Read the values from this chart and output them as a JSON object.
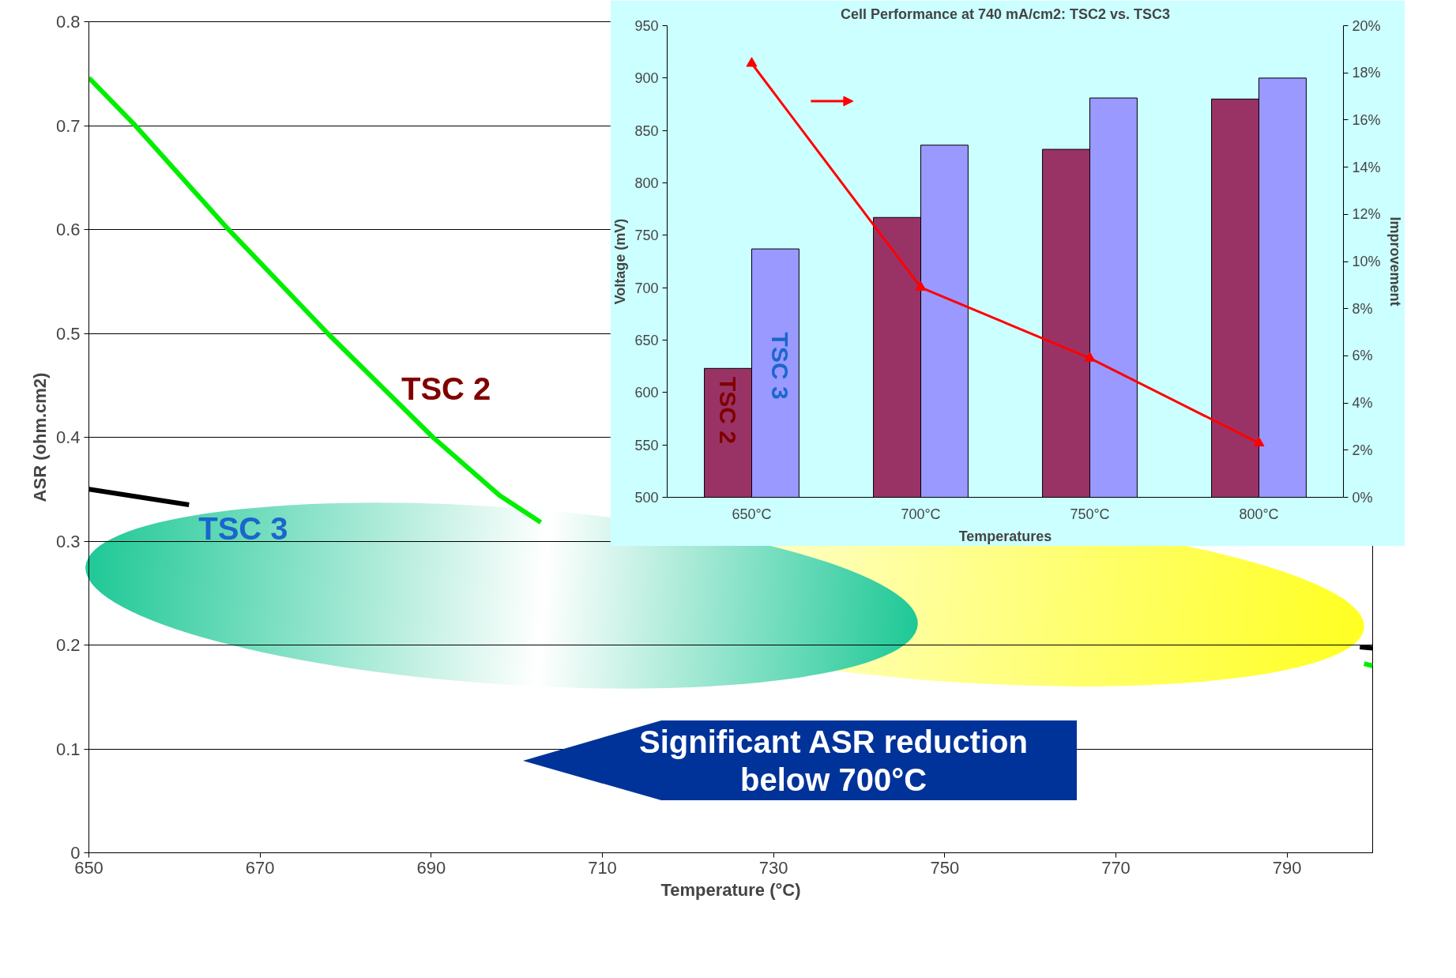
{
  "chart_data": [
    {
      "type": "line",
      "xlabel": "Temperature (°C)",
      "ylabel": "ASR (ohm.cm2)",
      "xlim": [
        650,
        800
      ],
      "ylim": [
        0,
        0.8
      ],
      "xticks": [
        650,
        670,
        690,
        710,
        730,
        750,
        770,
        790
      ],
      "yticks": [
        0,
        0.1,
        0.2,
        0.3,
        0.4,
        0.5,
        0.6,
        0.7,
        0.8
      ],
      "grid": "y",
      "marker": "none",
      "series": [
        {
          "name": "TSC 2",
          "color": "#00ee00",
          "x": [
            650,
            655.2,
            666.2,
            677.9,
            690.2,
            698,
            702.8,
            null,
            799,
            800
          ],
          "values": [
            0.746,
            0.702,
            0.601,
            0.5,
            0.4,
            0.344,
            0.318,
            null,
            0.182,
            0.18
          ]
        },
        {
          "name": "TSC 3",
          "color": "#000000",
          "x": [
            650,
            661.7,
            null,
            798.5,
            800
          ],
          "values": [
            0.35,
            0.335,
            null,
            0.198,
            0.197
          ]
        }
      ],
      "annotations": [
        "Significant ASR reduction\nbelow 700°C"
      ]
    },
    {
      "type": "bar",
      "title": "Cell Performance at 740 mA/cm2: TSC2 vs. TSC3",
      "xlabel": "Temperatures",
      "ylabel": "Voltage (mV)",
      "y2label": "Improvement",
      "categories": [
        "650°C",
        "700°C",
        "750°C",
        "800°C"
      ],
      "ylim": [
        500,
        950
      ],
      "yticks": [
        500,
        550,
        600,
        650,
        700,
        750,
        800,
        850,
        900,
        950
      ],
      "y2lim": [
        0,
        20
      ],
      "y2ticks": [
        {
          "value": 0,
          "label": "0%"
        },
        {
          "value": 2,
          "label": "2%"
        },
        {
          "value": 4,
          "label": "4%"
        },
        {
          "value": 6,
          "label": "6%"
        },
        {
          "value": 8,
          "label": "8%"
        },
        {
          "value": 10,
          "label": "10%"
        },
        {
          "value": 12,
          "label": "12%"
        },
        {
          "value": 14,
          "label": "14%"
        },
        {
          "value": 16,
          "label": "16%"
        },
        {
          "value": 18,
          "label": "18%"
        },
        {
          "value": 20,
          "label": "20%"
        }
      ],
      "grid": false,
      "marker": "triangle",
      "series": [
        {
          "name": "TSC 2",
          "color": "#993366",
          "values": [
            623,
            767,
            832,
            880
          ]
        },
        {
          "name": "TSC 3",
          "color": "#9999ff",
          "values": [
            737,
            836,
            881,
            900
          ]
        },
        {
          "type": "line",
          "axis": "y2",
          "color": "#ff0000",
          "values": [
            18.4,
            8.9,
            5.9,
            2.3
          ]
        }
      ]
    }
  ]
}
